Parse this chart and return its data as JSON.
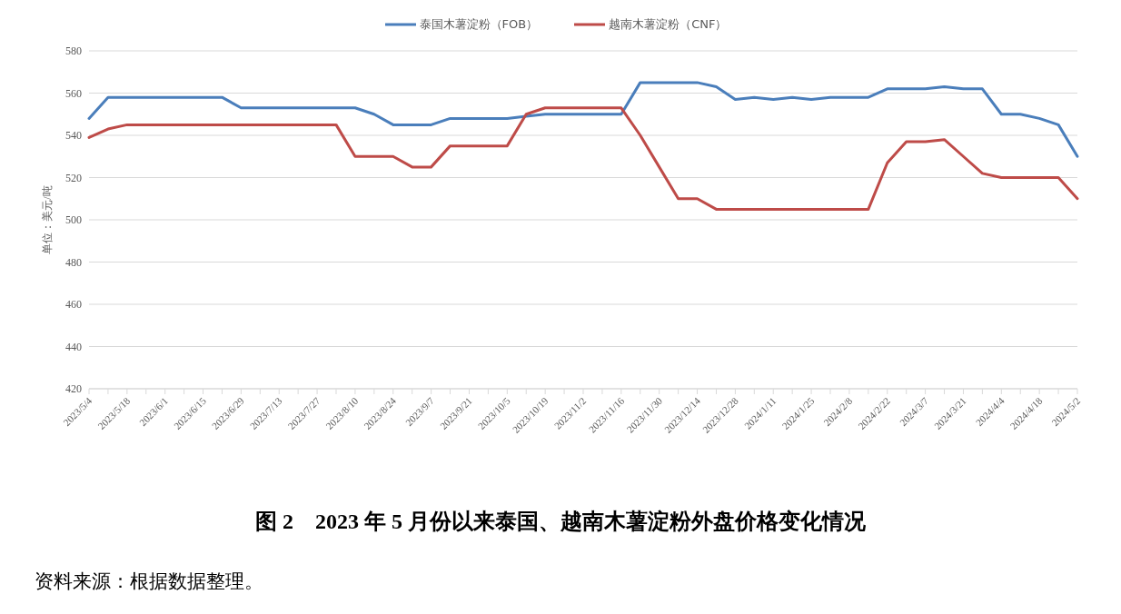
{
  "chart_data": {
    "type": "line",
    "title": "图 2　2023 年 5 月份以来泰国、越南木薯淀粉外盘价格变化情况",
    "ylabel": "单位：美元/吨",
    "annotations": [
      "资料来源：根据数据整理。"
    ],
    "categories": [
      "2023/5/4",
      null,
      "2023/5/18",
      null,
      "2023/6/1",
      null,
      "2023/6/15",
      null,
      "2023/6/29",
      null,
      "2023/7/13",
      null,
      "2023/7/27",
      null,
      "2023/8/10",
      null,
      "2023/8/24",
      null,
      "2023/9/7",
      null,
      "2023/9/21",
      null,
      "2023/10/5",
      null,
      "2023/10/19",
      null,
      "2023/11/2",
      null,
      "2023/11/16",
      null,
      "2023/11/30",
      null,
      "2023/12/14",
      null,
      "2023/12/28",
      null,
      "2024/1/11",
      null,
      "2024/1/25",
      null,
      "2024/2/8",
      null,
      "2024/2/22",
      null,
      "2024/3/7",
      null,
      "2024/3/21",
      null,
      "2024/4/4",
      null,
      "2024/4/18",
      null,
      "2024/5/2"
    ],
    "series": [
      {
        "name": "泰国木薯淀粉（FOB）",
        "color": "#4a7ebb",
        "values": [
          548,
          558,
          558,
          558,
          558,
          558,
          558,
          558,
          553,
          553,
          553,
          553,
          553,
          553,
          553,
          550,
          545,
          545,
          545,
          548,
          548,
          548,
          548,
          549,
          550,
          550,
          550,
          550,
          550,
          565,
          565,
          565,
          565,
          563,
          557,
          558,
          557,
          558,
          557,
          558,
          558,
          558,
          562,
          562,
          562,
          563,
          562,
          562,
          550,
          550,
          548,
          545,
          530
        ]
      },
      {
        "name": "越南木薯淀粉（CNF）",
        "color": "#be4b48",
        "values": [
          539,
          543,
          545,
          545,
          545,
          545,
          545,
          545,
          545,
          545,
          545,
          545,
          545,
          545,
          530,
          530,
          530,
          525,
          525,
          535,
          535,
          535,
          535,
          550,
          553,
          553,
          553,
          553,
          553,
          540,
          525,
          510,
          510,
          505,
          505,
          505,
          505,
          505,
          505,
          505,
          505,
          505,
          527,
          537,
          537,
          538,
          530,
          522,
          520,
          520,
          520,
          520,
          510
        ]
      }
    ],
    "ylim": [
      420,
      580
    ],
    "yticks": [
      420,
      440,
      460,
      480,
      500,
      520,
      540,
      560,
      580
    ],
    "grid": "y",
    "legend": "top",
    "marker": "none",
    "line_style": "solid"
  }
}
